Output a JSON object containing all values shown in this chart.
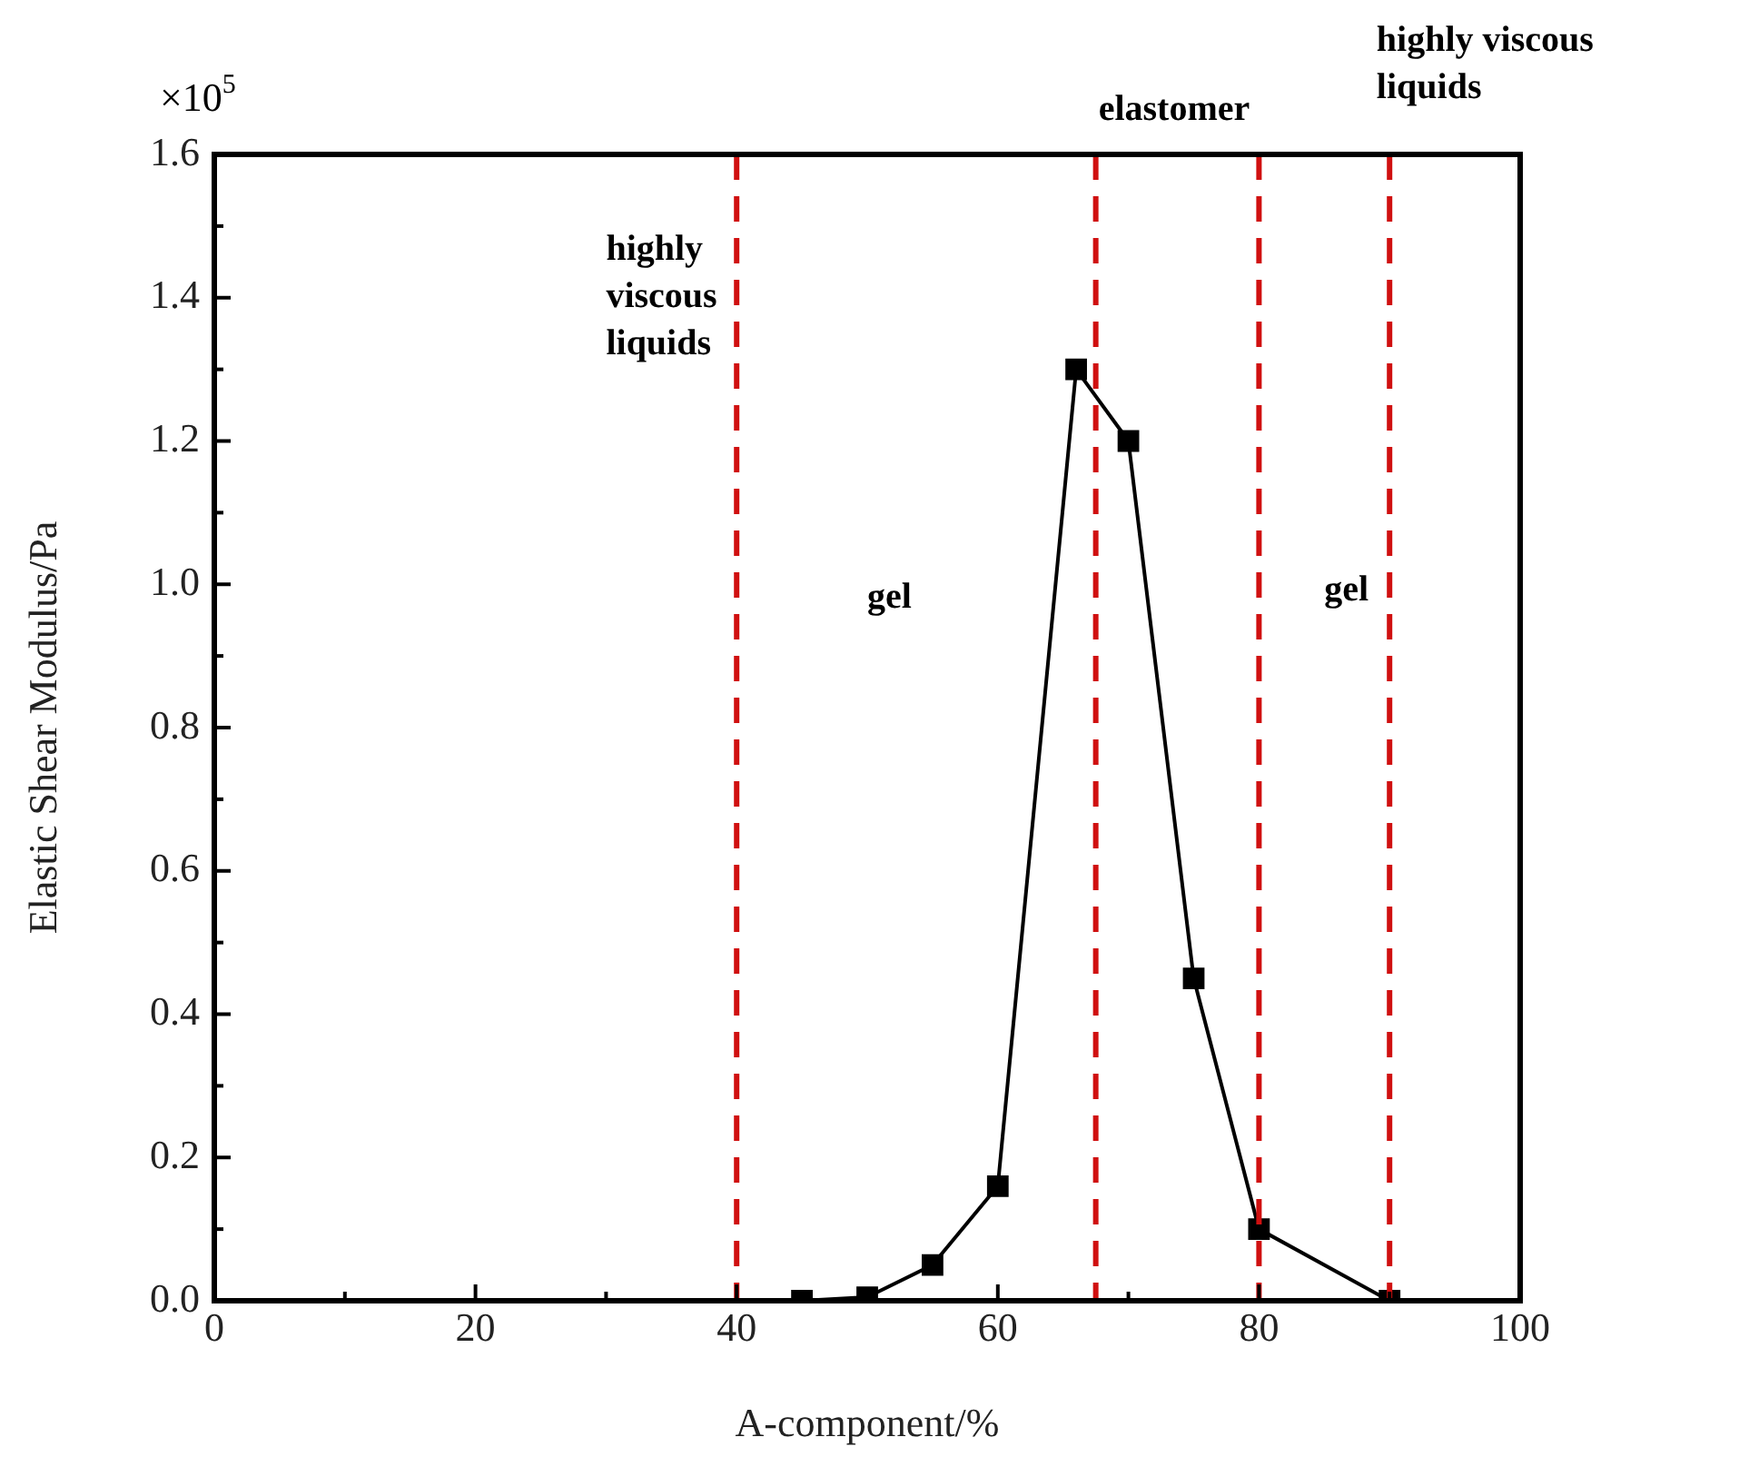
{
  "chart_data": {
    "type": "line",
    "xlabel": "A-component/%",
    "ylabel": "Elastic Shear Modulus/Pa",
    "x": [
      45,
      50,
      55,
      60,
      66,
      70,
      75,
      80,
      90
    ],
    "series": [
      {
        "color": "#000000",
        "values": [
          0,
          0.005,
          0.05,
          0.16,
          1.3,
          1.2,
          0.45,
          0.1,
          0
        ]
      }
    ],
    "xlim": [
      0,
      100
    ],
    "ylim": [
      0,
      1.6
    ],
    "xticks": [
      0,
      {
        "value": 10,
        "label": null
      },
      20,
      {
        "value": 30,
        "label": null
      },
      40,
      {
        "value": 50,
        "label": null
      },
      60,
      {
        "value": 70,
        "label": null
      },
      80,
      {
        "value": 90,
        "label": null
      },
      100
    ],
    "yticks": [
      {
        "value": 0,
        "label": "0.0"
      },
      {
        "value": 0.1,
        "label": null
      },
      0.2,
      {
        "value": 0.3,
        "label": null
      },
      0.4,
      {
        "value": 0.5,
        "label": null
      },
      0.6,
      {
        "value": 0.7,
        "label": null
      },
      0.8,
      {
        "value": 0.9,
        "label": null
      },
      {
        "value": 1,
        "label": "1.0"
      },
      {
        "value": 1.1,
        "label": null
      },
      1.2,
      {
        "value": 1.3,
        "label": null
      },
      1.4,
      {
        "value": 1.5,
        "label": null
      },
      1.6
    ],
    "ref_lines": [
      {
        "axis": "x",
        "value": 40,
        "color": "#d01010",
        "line_style": "dashed"
      },
      {
        "axis": "x",
        "value": 67.5,
        "color": "#d01010",
        "line_style": "dashed"
      },
      {
        "axis": "x",
        "value": 80,
        "color": "#d01010",
        "line_style": "dashed"
      },
      {
        "axis": "x",
        "value": 90,
        "color": "#d01010",
        "line_style": "dashed"
      }
    ],
    "annotations": [
      "×10$^{5}$",
      "highly viscous liquids",
      "gel",
      "gel",
      "elastomer",
      "highly viscous liquids"
    ],
    "marker": "square",
    "line_style": "solid",
    "grid": false,
    "legend": false
  }
}
